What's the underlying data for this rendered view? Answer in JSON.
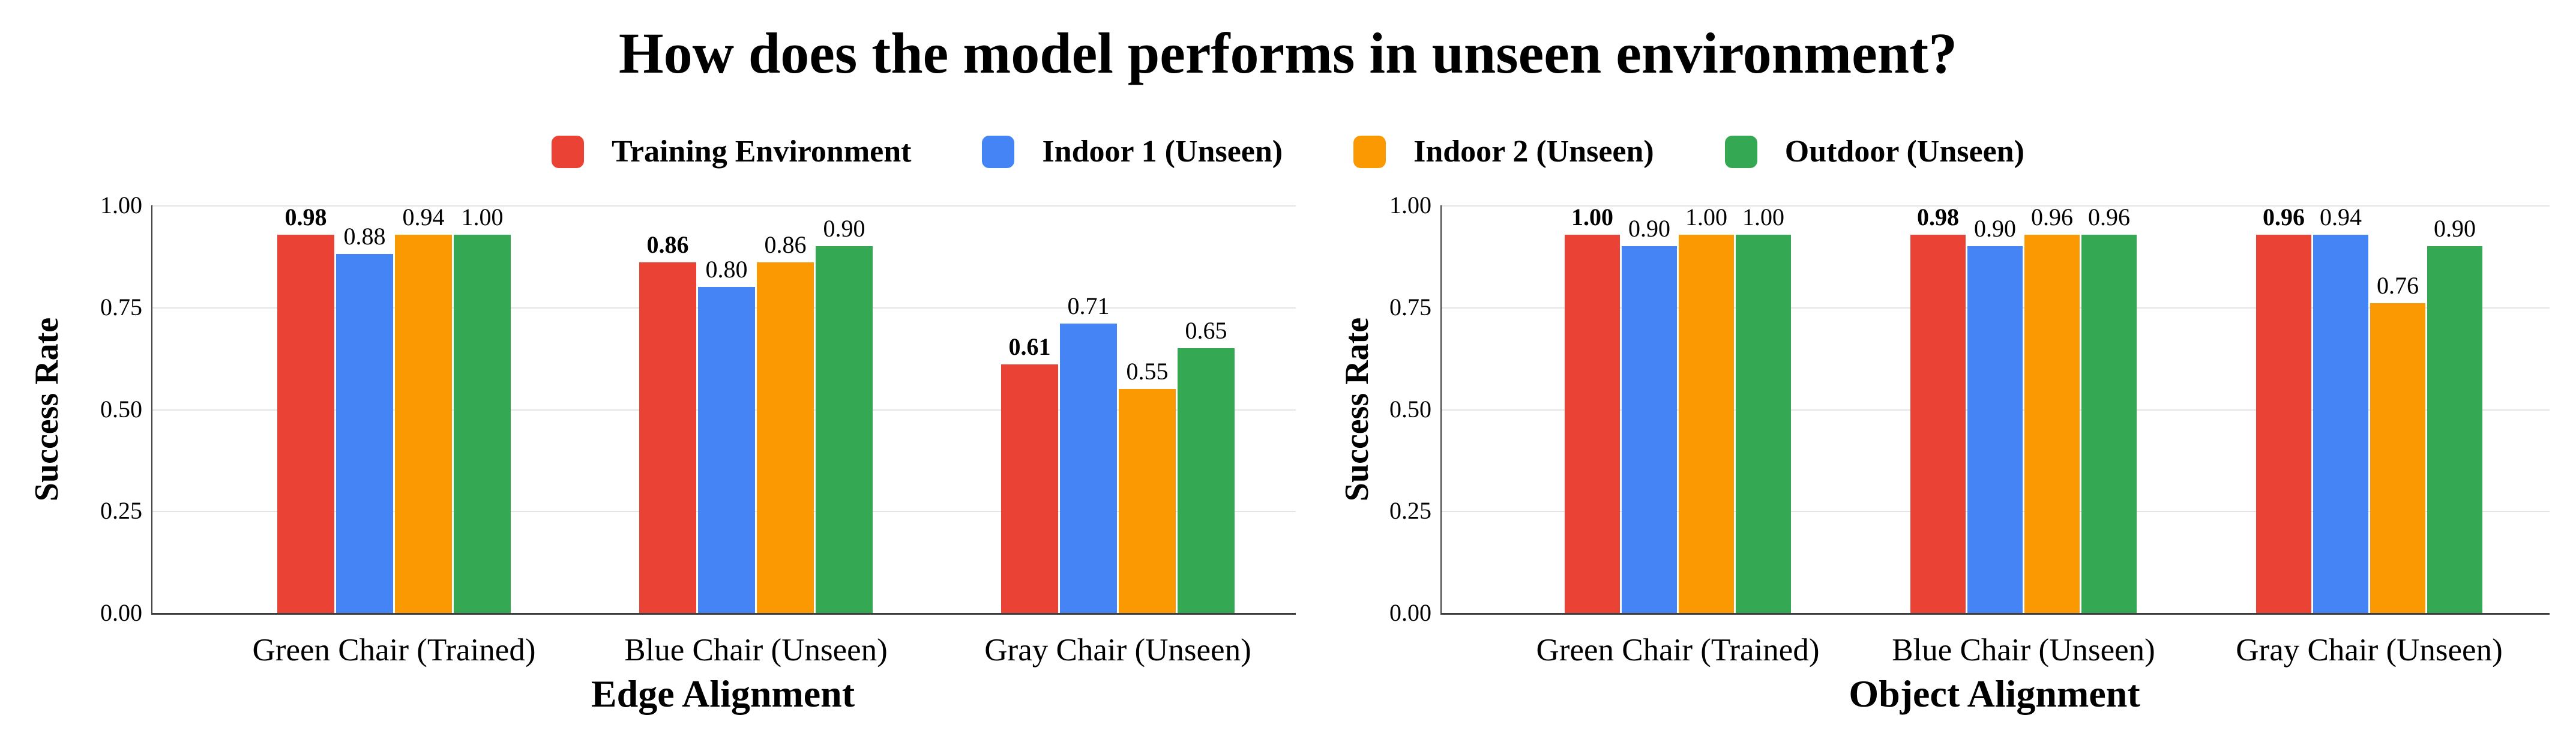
{
  "title": "How does the model performs in unseen environment?",
  "legend": [
    {
      "label": "Training Environment",
      "color": "#EA4335"
    },
    {
      "label": "Indoor 1 (Unseen)",
      "color": "#4584F4"
    },
    {
      "label": "Indoor 2 (Unseen)",
      "color": "#FB9902"
    },
    {
      "label": "Outdoor (Unseen)",
      "color": "#35A853"
    }
  ],
  "style_colors": {
    "gridline": "#E4E4E4",
    "axis_line": "#3D3D3D",
    "text": "#000000",
    "background": "#FFFFFF"
  },
  "chart_data": [
    {
      "type": "bar",
      "title": "",
      "xlabel": "Edge Alignment",
      "ylabel": "Success Rate",
      "ylim": [
        0,
        1.0
      ],
      "yticks": [
        "0.00",
        "0.25",
        "0.50",
        "0.75",
        "1.00"
      ],
      "grid": true,
      "legend_position": "top",
      "value_labels": true,
      "categories": [
        "Green Chair (Trained)",
        "Blue Chair (Unseen)",
        "Gray Chair (Unseen)"
      ],
      "series": [
        {
          "name": "Training Environment",
          "color": "#EA4335",
          "emphasized": true,
          "values": [
            0.98,
            0.86,
            0.61
          ]
        },
        {
          "name": "Indoor 1 (Unseen)",
          "color": "#4584F4",
          "emphasized": false,
          "values": [
            0.88,
            0.8,
            0.71
          ]
        },
        {
          "name": "Indoor 2 (Unseen)",
          "color": "#FB9902",
          "emphasized": false,
          "values": [
            0.94,
            0.86,
            0.55
          ]
        },
        {
          "name": "Outdoor (Unseen)",
          "color": "#35A853",
          "emphasized": false,
          "values": [
            1.0,
            0.9,
            0.65
          ]
        }
      ]
    },
    {
      "type": "bar",
      "title": "",
      "xlabel": "Object Alignment",
      "ylabel": "Success Rate",
      "ylim": [
        0,
        1.0
      ],
      "yticks": [
        "0.00",
        "0.25",
        "0.50",
        "0.75",
        "1.00"
      ],
      "grid": true,
      "legend_position": "top",
      "value_labels": true,
      "categories": [
        "Green Chair (Trained)",
        "Blue Chair (Unseen)",
        "Gray Chair (Unseen)"
      ],
      "series": [
        {
          "name": "Training Environment",
          "color": "#EA4335",
          "emphasized": true,
          "values": [
            1.0,
            0.98,
            0.96
          ]
        },
        {
          "name": "Indoor 1 (Unseen)",
          "color": "#4584F4",
          "emphasized": false,
          "values": [
            0.9,
            0.9,
            0.94
          ]
        },
        {
          "name": "Indoor 2 (Unseen)",
          "color": "#FB9902",
          "emphasized": false,
          "values": [
            1.0,
            0.96,
            0.76
          ]
        },
        {
          "name": "Outdoor (Unseen)",
          "color": "#35A853",
          "emphasized": false,
          "values": [
            1.0,
            0.96,
            0.9
          ]
        }
      ]
    }
  ]
}
